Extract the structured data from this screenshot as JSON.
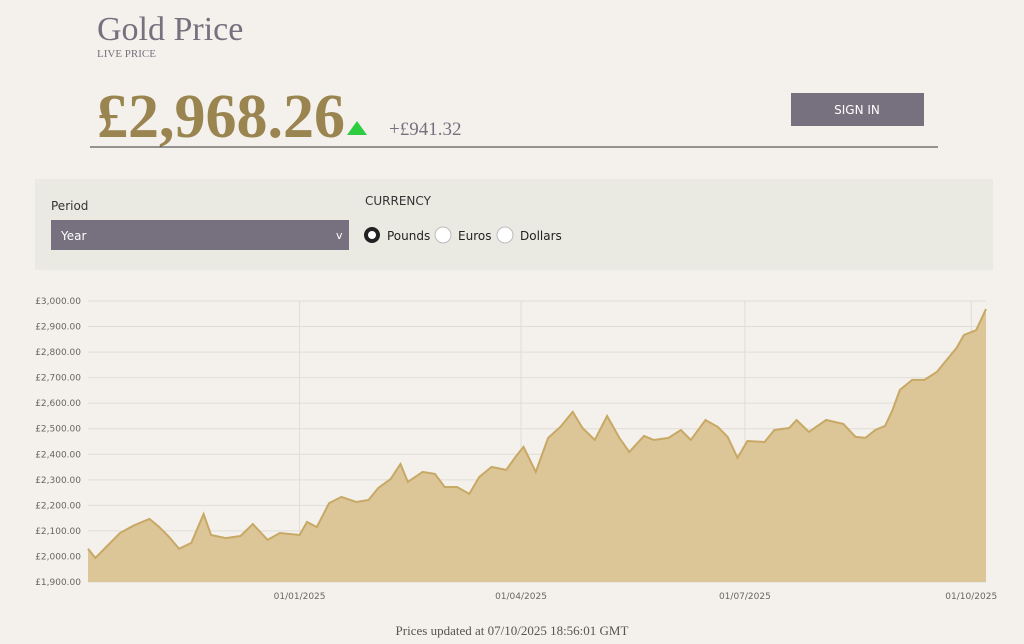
{
  "header": {
    "title": "Gold Price",
    "subtitle": "LIVE PRICE",
    "price": "£2,968.26",
    "change": "+£941.32",
    "sign_in": "SIGN IN"
  },
  "controls": {
    "period_label": "Period",
    "period_value": "Year",
    "select_arrow": "v",
    "currency_label": "CURRENCY",
    "currency_options": [
      "Pounds",
      "Euros",
      "Dollars"
    ],
    "selected": 0
  },
  "chart_data": {
    "type": "area",
    "fill": "#dcc698",
    "line_color": "#c8a865",
    "grid": true,
    "x": [
      "07/10/2024",
      "10/10/2024",
      "14/10/2024",
      "20/10/2024",
      "26/10/2024",
      "01/11/2024",
      "05/11/2024",
      "09/11/2024",
      "13/11/2024",
      "18/11/2024",
      "23/11/2024",
      "26/11/2024",
      "02/12/2024",
      "08/12/2024",
      "13/12/2024",
      "19/12/2024",
      "24/12/2024",
      "01/01/2025",
      "04/01/2025",
      "08/01/2025",
      "13/01/2025",
      "18/01/2025",
      "24/01/2025",
      "29/01/2025",
      "02/02/2025",
      "07/02/2025",
      "11/02/2025",
      "14/02/2025",
      "20/02/2025",
      "25/02/2025",
      "01/03/2025",
      "06/03/2025",
      "11/03/2025",
      "15/03/2025",
      "20/03/2025",
      "26/03/2025",
      "30/03/2025",
      "02/04/2025",
      "07/04/2025",
      "12/04/2025",
      "17/04/2025",
      "22/04/2025",
      "26/04/2025",
      "01/05/2025",
      "06/05/2025",
      "11/05/2025",
      "15/05/2025",
      "21/05/2025",
      "25/05/2025",
      "31/05/2025",
      "05/06/2025",
      "09/06/2025",
      "15/06/2025",
      "20/06/2025",
      "24/06/2025",
      "28/06/2025",
      "02/07/2025",
      "09/07/2025",
      "13/07/2025",
      "19/07/2025",
      "22/07/2025",
      "27/07/2025",
      "03/08/2025",
      "10/08/2025",
      "15/08/2025",
      "19/08/2025",
      "23/08/2025",
      "27/08/2025",
      "30/08/2025",
      "02/09/2025",
      "07/09/2025",
      "12/09/2025",
      "17/09/2025",
      "21/09/2025",
      "25/09/2025",
      "28/09/2025",
      "03/10/2025",
      "07/10/2025"
    ],
    "values": [
      2030,
      1994,
      2033,
      2092,
      2123,
      2147,
      2115,
      2076,
      2030,
      2053,
      2166,
      2084,
      2072,
      2080,
      2127,
      2065,
      2092,
      2084,
      2135,
      2115,
      2209,
      2233,
      2213,
      2221,
      2268,
      2303,
      2362,
      2292,
      2331,
      2323,
      2272,
      2272,
      2245,
      2311,
      2350,
      2339,
      2393,
      2429,
      2331,
      2464,
      2507,
      2566,
      2503,
      2456,
      2550,
      2464,
      2409,
      2472,
      2456,
      2464,
      2495,
      2456,
      2534,
      2507,
      2468,
      2386,
      2452,
      2448,
      2495,
      2503,
      2534,
      2487,
      2534,
      2519,
      2468,
      2464,
      2495,
      2511,
      2573,
      2652,
      2691,
      2691,
      2722,
      2769,
      2816,
      2867,
      2886,
      2968.26
    ],
    "xlim": [
      "07/10/2024",
      "07/10/2025"
    ],
    "xticks": [
      "01/01/2025",
      "01/04/2025",
      "01/07/2025",
      "01/10/2025"
    ],
    "ylim": [
      1900,
      3000
    ],
    "yticks": [
      {
        "value": 1900,
        "label": "£1,900.00"
      },
      {
        "value": 2000,
        "label": "£2,000.00"
      },
      {
        "value": 2100,
        "label": "£2,100.00"
      },
      {
        "value": 2200,
        "label": "£2,200.00"
      },
      {
        "value": 2300,
        "label": "£2,300.00"
      },
      {
        "value": 2400,
        "label": "£2,400.00"
      },
      {
        "value": 2500,
        "label": "£2,500.00"
      },
      {
        "value": 2600,
        "label": "£2,600.00"
      },
      {
        "value": 2700,
        "label": "£2,700.00"
      },
      {
        "value": 2800,
        "label": "£2,800.00"
      },
      {
        "value": 2900,
        "label": "£2,900.00"
      },
      {
        "value": 3000,
        "label": "£3,000.00"
      }
    ]
  },
  "footer": "Prices updated at 07/10/2025 18:56:01 GMT"
}
